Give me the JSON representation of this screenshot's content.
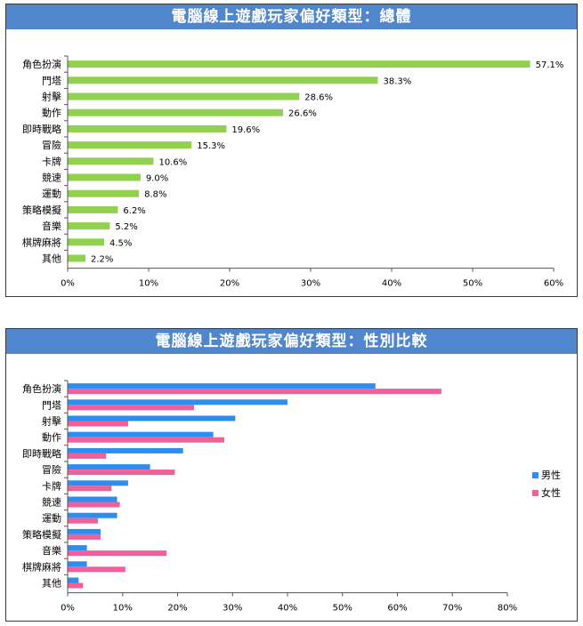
{
  "chart_data": [
    {
      "type": "bar",
      "title": "電腦線上遊戲玩家偏好類型：總體",
      "categories": [
        "角色扮演",
        "門塔",
        "射擊",
        "動作",
        "即時戰略",
        "冒險",
        "卡牌",
        "競速",
        "運動",
        "策略模擬",
        "音樂",
        "棋牌麻將",
        "其他"
      ],
      "values": [
        57.1,
        38.3,
        28.6,
        26.6,
        19.6,
        15.3,
        10.6,
        9.0,
        8.8,
        6.2,
        5.2,
        4.5,
        2.2
      ],
      "value_labels": [
        "57.1%",
        "38.3%",
        "28.6%",
        "26.6%",
        "19.6%",
        "15.3%",
        "10.6%",
        "9.0%",
        "8.8%",
        "6.2%",
        "5.2%",
        "4.5%",
        "2.2%"
      ],
      "xlim": [
        0,
        60
      ],
      "xticks": [
        "0%",
        "10%",
        "20%",
        "30%",
        "40%",
        "50%",
        "60%"
      ],
      "color": "#92d050"
    },
    {
      "type": "bar",
      "title": "電腦線上遊戲玩家偏好類型：性別比較",
      "categories": [
        "角色扮演",
        "門塔",
        "射擊",
        "動作",
        "即時戰略",
        "冒險",
        "卡牌",
        "競速",
        "運動",
        "策略模擬",
        "音樂",
        "棋牌麻將",
        "其他"
      ],
      "series": [
        {
          "name": "男性",
          "color": "#2e8ef0",
          "values": [
            56,
            40,
            30.5,
            26.5,
            21,
            15,
            11,
            9,
            9,
            6,
            3.5,
            3.5,
            2
          ]
        },
        {
          "name": "女性",
          "color": "#f0609a",
          "values": [
            68,
            23,
            11,
            28.5,
            7,
            19.5,
            8,
            9.5,
            5.5,
            6,
            18,
            10.5,
            2.8
          ]
        }
      ],
      "xlim": [
        0,
        80
      ],
      "xticks": [
        "0%",
        "10%",
        "20%",
        "30%",
        "40%",
        "50%",
        "60%",
        "70%",
        "80%"
      ],
      "legend": "right"
    }
  ]
}
